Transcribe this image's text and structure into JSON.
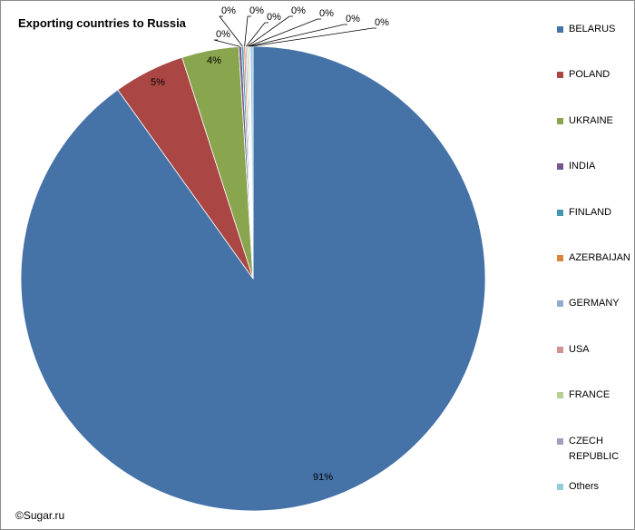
{
  "credit": "©Sugar.ru",
  "chart_data": {
    "type": "pie",
    "title": "Exporting countries to Russia",
    "legend_position": "right",
    "slices": [
      {
        "name": "BELARUS",
        "value": 91,
        "label": "91%",
        "color": "#4572A7"
      },
      {
        "name": "POLAND",
        "value": 5,
        "label": "5%",
        "color": "#AA4643"
      },
      {
        "name": "UKRAINE",
        "value": 4,
        "label": "4%",
        "color": "#89A54E"
      },
      {
        "name": "INDIA",
        "value": 0.2,
        "label": "0%",
        "color": "#71588F"
      },
      {
        "name": "FINLAND",
        "value": 0.15,
        "label": "0%",
        "color": "#4198AF"
      },
      {
        "name": "AZERBAIJAN",
        "value": 0.12,
        "label": "0%",
        "color": "#DB843D"
      },
      {
        "name": "GERMANY",
        "value": 0.1,
        "label": "0%",
        "color": "#93A9CF"
      },
      {
        "name": "USA",
        "value": 0.09,
        "label": "0%",
        "color": "#D19392"
      },
      {
        "name": "FRANCE",
        "value": 0.08,
        "label": "0%",
        "color": "#B9CD96"
      },
      {
        "name": "CZECH REPUBLIC",
        "value": 0.07,
        "label": "0%",
        "color": "#A99BBD"
      },
      {
        "name": "Others",
        "value": 0.19,
        "label": "0%",
        "color": "#92CDDC"
      }
    ]
  }
}
